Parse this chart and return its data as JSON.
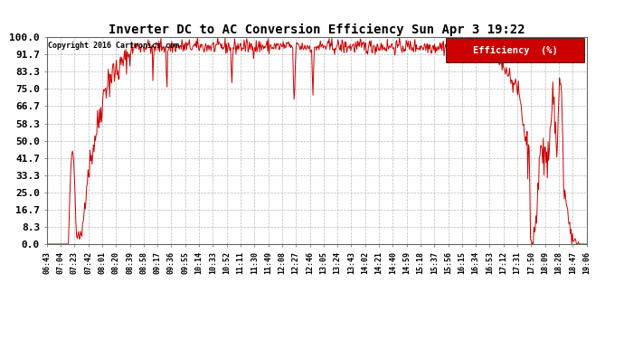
{
  "title": "Inverter DC to AC Conversion Efficiency Sun Apr 3 19:22",
  "copyright": "Copyright 2016 Cartronics.com",
  "legend_label": "Efficiency  (%)",
  "legend_bg": "#cc0000",
  "legend_fg": "#ffffff",
  "line_color": "#cc0000",
  "bg_color": "#ffffff",
  "plot_bg": "#ffffff",
  "grid_color": "#aaaaaa",
  "title_color": "#000000",
  "ylabel_values": [
    0.0,
    8.3,
    16.7,
    25.0,
    33.3,
    41.7,
    50.0,
    58.3,
    66.7,
    75.0,
    83.3,
    91.7,
    100.0
  ],
  "ylim": [
    0,
    100
  ],
  "xtick_labels": [
    "06:43",
    "07:04",
    "07:23",
    "07:42",
    "08:01",
    "08:20",
    "08:39",
    "08:58",
    "09:17",
    "09:36",
    "09:55",
    "10:14",
    "10:33",
    "10:52",
    "11:11",
    "11:30",
    "11:49",
    "12:08",
    "12:27",
    "12:46",
    "13:05",
    "13:24",
    "13:43",
    "14:02",
    "14:21",
    "14:40",
    "14:59",
    "15:18",
    "15:37",
    "15:56",
    "16:15",
    "16:34",
    "16:53",
    "17:12",
    "17:31",
    "17:50",
    "18:09",
    "18:28",
    "18:47",
    "19:06"
  ]
}
